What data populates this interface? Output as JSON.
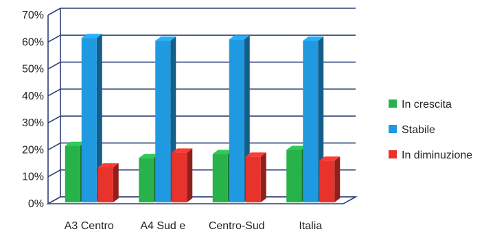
{
  "chart_data": {
    "type": "bar",
    "title": "",
    "xlabel": "",
    "ylabel": "",
    "categories": [
      "A3 Centro",
      "A4 Sud e",
      "Centro-Sud",
      "Italia"
    ],
    "series": [
      {
        "name": "In crescita",
        "color": "#27b24a",
        "values": [
          22,
          17.5,
          19,
          20.5
        ]
      },
      {
        "name": "Stabile",
        "color": "#1f9ae0",
        "values": [
          62,
          61,
          61.5,
          61
        ]
      },
      {
        "name": "In diminuzione",
        "color": "#e8332d",
        "values": [
          14,
          19.5,
          18,
          16.5
        ]
      }
    ],
    "ylim": [
      0,
      70
    ],
    "yticks": [
      "0%",
      "10%",
      "20%",
      "30%",
      "40%",
      "50%",
      "60%",
      "70%"
    ],
    "grid": true,
    "style": "3d",
    "legend_position": "right"
  }
}
